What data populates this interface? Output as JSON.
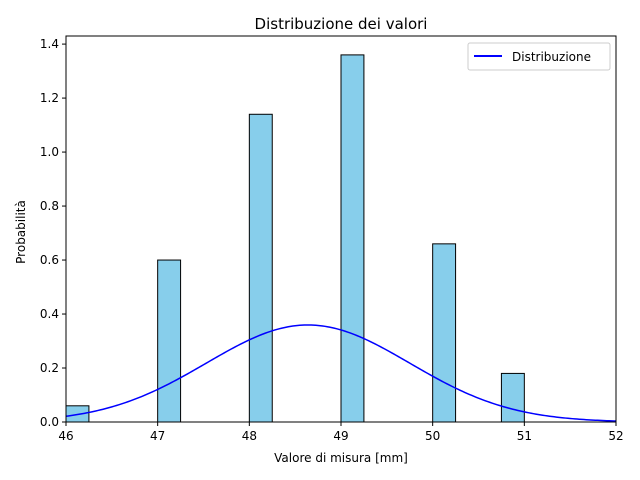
{
  "chart_data": {
    "type": "bar",
    "title": "Distribuzione dei valori",
    "xlabel": "Valore di misura [mm]",
    "ylabel": "Probabilità",
    "xlim": [
      46,
      52
    ],
    "ylim": [
      0,
      1.43
    ],
    "xticks": [
      "46",
      "47",
      "48",
      "49",
      "50",
      "51",
      "52"
    ],
    "yticks": [
      "0.0",
      "0.2",
      "0.4",
      "0.6",
      "0.8",
      "1.0",
      "1.2",
      "1.4"
    ],
    "grid": false,
    "legend_position": "top-right",
    "bars": {
      "fill_color": "#87CEEB",
      "edge_color": "#000000",
      "bin_left": [
        46.0,
        47.0,
        48.0,
        49.0,
        50.0,
        50.75
      ],
      "bin_right": [
        46.25,
        47.25,
        48.25,
        49.25,
        50.25,
        51.0
      ],
      "values": [
        0.06,
        0.6,
        1.14,
        1.36,
        0.66,
        0.18
      ]
    },
    "curve": {
      "name": "Distribuzione",
      "color": "#0000FF",
      "kind": "normal",
      "mean": 48.64,
      "std": 1.11,
      "x": [
        46.0,
        46.5,
        47.0,
        47.5,
        48.0,
        48.64,
        49.0,
        49.5,
        50.0,
        50.5,
        51.0,
        51.5,
        52.0
      ],
      "y": [
        0.022,
        0.056,
        0.12,
        0.21,
        0.306,
        0.36,
        0.341,
        0.268,
        0.169,
        0.089,
        0.038,
        0.013,
        0.004
      ]
    }
  }
}
